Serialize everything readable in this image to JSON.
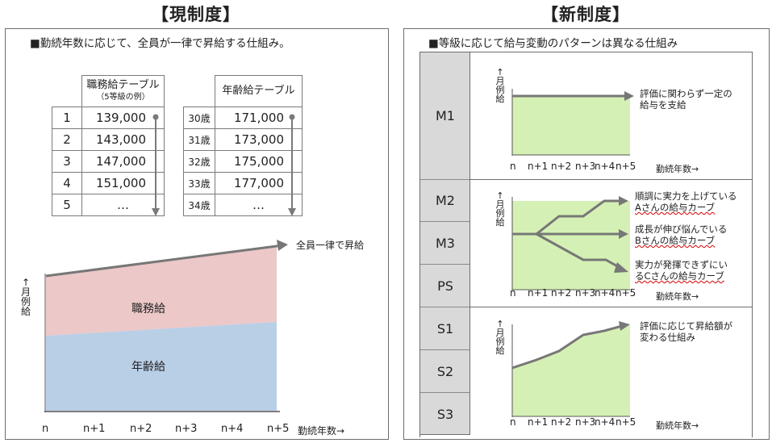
{
  "left": {
    "heading": "【現制度】",
    "description": "■勤続年数に応じて、全員が一律で昇給する仕組み。",
    "job_table": {
      "header": "職務給テーブル",
      "subheader": "（5等級の例）",
      "rows": [
        {
          "grade": "1",
          "value": "139,000"
        },
        {
          "grade": "2",
          "value": "143,000"
        },
        {
          "grade": "3",
          "value": "147,000"
        },
        {
          "grade": "4",
          "value": "151,000"
        },
        {
          "grade": "5",
          "value": "…"
        }
      ]
    },
    "age_table": {
      "header": "年齢給テーブル",
      "rows": [
        {
          "age": "30歳",
          "value": "171,000"
        },
        {
          "age": "31歳",
          "value": "173,000"
        },
        {
          "age": "32歳",
          "value": "175,000"
        },
        {
          "age": "33歳",
          "value": "177,000"
        },
        {
          "age": "34歳",
          "value": "…"
        }
      ]
    },
    "chart": {
      "y_label": "↑月例給",
      "arrow_label": "全員一律で昇給",
      "area_top_label": "職務給",
      "area_bottom_label": "年齢給",
      "x_ticks": [
        "n",
        "n+1",
        "n+2",
        "n+3",
        "n+4",
        "n+5"
      ],
      "x_label": "勤続年数→",
      "colors": {
        "job": "#ecc8c8",
        "age": "#b9cfe6",
        "line": "#777777"
      }
    }
  },
  "right": {
    "heading": "【新制度】",
    "description": "■等級に応じて給与変動のパターンは異なる仕組み",
    "grades": [
      "M1",
      "M2",
      "M3",
      "PS",
      "S1",
      "S2",
      "S3"
    ],
    "charts": [
      {
        "y_label": "↑月例給",
        "notes": [
          {
            "text": "評価に関わらず一定の給与を支給"
          }
        ],
        "x_ticks": [
          "n",
          "n+1",
          "n+2",
          "n+3",
          "n+4",
          "n+5"
        ],
        "x_label": "勤続年数→"
      },
      {
        "y_label": "↑月例給",
        "notes": [
          {
            "line1": "順調に実力を上げている",
            "line2": "Aさんの給与カーブ"
          },
          {
            "line1": "成長が伸び悩んでいる",
            "line2": "Bさんの給与カーブ"
          },
          {
            "line1": "実力が発揮できずにい",
            "line2": "るCさんの給与カーブ"
          }
        ],
        "x_ticks": [
          "n",
          "n+1",
          "n+2",
          "n+3",
          "n+4",
          "n+5"
        ],
        "x_label": "勤続年数→"
      },
      {
        "y_label": "↑月例給",
        "notes": [
          {
            "line1": "評価に応じて昇給額が",
            "line2": "変わる仕組み"
          }
        ],
        "x_ticks": [
          "n",
          "n+1",
          "n+2",
          "n+3",
          "n+4",
          "n+5"
        ],
        "x_label": "勤続年数→"
      }
    ],
    "colors": {
      "area": "#d5f0b4",
      "line": "#777777",
      "grade_bg": "#d9d9d9"
    }
  }
}
